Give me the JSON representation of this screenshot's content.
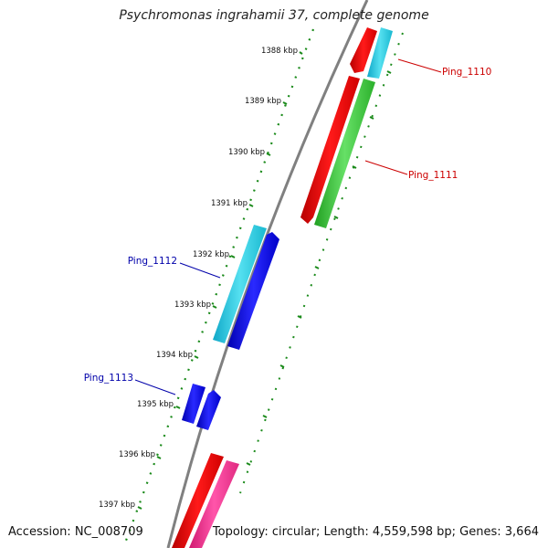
{
  "title": "Psychromonas ingrahamii 37, complete genome",
  "accession": "Accession: NC_008709",
  "topology": "Topology: circular; Length: 4,559,598 bp; Genes: 3,664",
  "ruler": {
    "ticks": [
      "1388 kbp",
      "1389 kbp",
      "1390 kbp",
      "1391 kbp",
      "1392 kbp",
      "1393 kbp",
      "1394 kbp",
      "1395 kbp",
      "1396 kbp",
      "1397 kbp"
    ]
  },
  "gene_labels": [
    {
      "id": "Ping_1110",
      "color": "#cc0000"
    },
    {
      "id": "Ping_1111",
      "color": "#cc0000"
    },
    {
      "id": "Ping_1112",
      "color": "#0000aa"
    },
    {
      "id": "Ping_1113",
      "color": "#0000aa"
    }
  ],
  "colors": {
    "backbone": "#808080",
    "ruler": "#1a8a1a",
    "red": "#ff0000",
    "cyan": "#22ccdd",
    "green": "#33cc33",
    "blue": "#0000ee",
    "pink": "#ff3399"
  }
}
